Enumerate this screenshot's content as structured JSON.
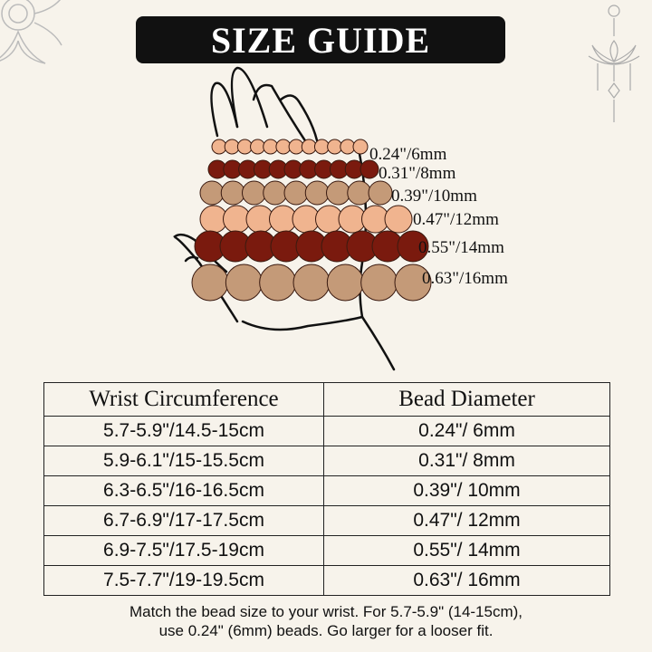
{
  "title": "SIZE GUIDE",
  "colors": {
    "background": "#f7f3eb",
    "peach": "#f0b48f",
    "dark_red": "#7a1a0e",
    "tan": "#c49a78"
  },
  "bead_labels": [
    {
      "label": "0.24\"/6mm",
      "color": "peach"
    },
    {
      "label": "0.31\"/8mm",
      "color": "dark_red"
    },
    {
      "label": "0.39\"/10mm",
      "color": "tan"
    },
    {
      "label": "0.47\"/12mm",
      "color": "peach"
    },
    {
      "label": "0.55\"/14mm",
      "color": "dark_red"
    },
    {
      "label": "0.63\"/16mm",
      "color": "tan"
    }
  ],
  "table": {
    "headers": [
      "Wrist Circumference",
      "Bead Diameter"
    ],
    "rows": [
      [
        "5.7-5.9\"/14.5-15cm",
        "0.24\"/ 6mm"
      ],
      [
        "5.9-6.1\"/15-15.5cm",
        "0.31\"/ 8mm"
      ],
      [
        "6.3-6.5\"/16-16.5cm",
        "0.39\"/ 10mm"
      ],
      [
        "6.7-6.9\"/17-17.5cm",
        "0.47\"/ 12mm"
      ],
      [
        "6.9-7.5\"/17.5-19cm",
        "0.55\"/ 14mm"
      ],
      [
        "7.5-7.7\"/19-19.5cm",
        "0.63\"/ 16mm"
      ]
    ]
  },
  "note_line1": "Match the bead size to your wrist. For 5.7-5.9\" (14-15cm),",
  "note_line2": "use 0.24\" (6mm) beads. Go larger for a looser fit."
}
